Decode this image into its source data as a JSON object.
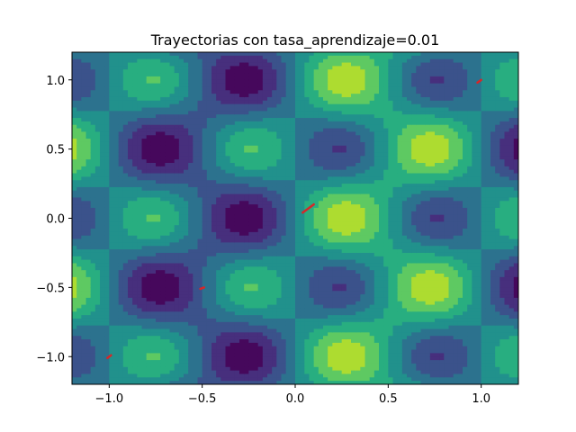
{
  "chart_data": {
    "type": "contour",
    "title": "Trayectorias con tasa_aprendizaje=0.01",
    "xlim": [
      -1.2,
      1.2
    ],
    "ylim": [
      -1.2,
      1.2
    ],
    "xticks": [
      -1.0,
      -0.5,
      0.0,
      0.5,
      1.0
    ],
    "xtick_labels": [
      "−1.0",
      "−0.5",
      "0.0",
      "0.5",
      "1.0"
    ],
    "yticks": [
      -1.0,
      -0.5,
      0.0,
      0.5,
      1.0
    ],
    "ytick_labels": [
      "−1.0",
      "−0.5",
      "0.0",
      "0.5",
      "1.0"
    ],
    "grid": false,
    "colormap": "viridis",
    "surface": "f(x, y) = sin(2πx)·cos(2πy)-style periodic landscape (filled contours)",
    "trajectory_color": "#d62728",
    "trajectories": [
      {
        "points": [
          [
            0.04,
            0.04
          ],
          [
            0.06,
            0.06
          ],
          [
            0.08,
            0.08
          ],
          [
            0.1,
            0.1
          ]
        ]
      },
      {
        "points": [
          [
            -0.51,
            -0.51
          ],
          [
            -0.49,
            -0.5
          ]
        ]
      },
      {
        "points": [
          [
            -1.01,
            -1.01
          ],
          [
            -0.99,
            -0.99
          ]
        ]
      },
      {
        "points": [
          [
            0.98,
            0.98
          ],
          [
            1.0,
            1.0
          ]
        ]
      }
    ]
  }
}
